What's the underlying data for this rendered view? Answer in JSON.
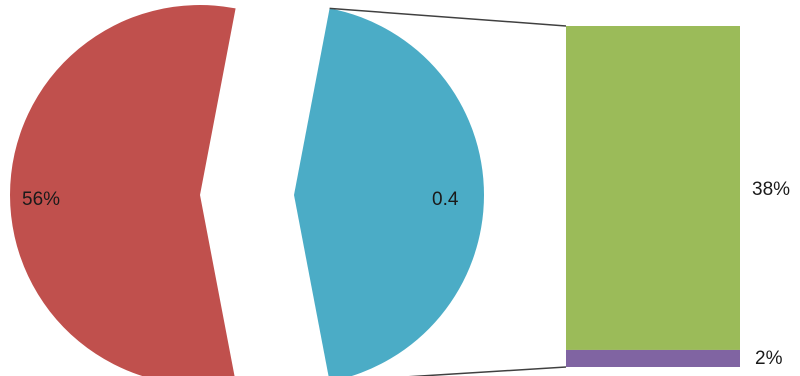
{
  "chart_data": {
    "type": "pie",
    "subtype": "bar-of-pie",
    "slices": [
      {
        "label": "56%",
        "value": 56,
        "color": "#c0504d"
      },
      {
        "label": "0.4",
        "value": 40,
        "color": "#4bacc6",
        "exploded": true
      }
    ],
    "secondary_bar": [
      {
        "label": "38%",
        "value": 38,
        "color": "#9bbb59"
      },
      {
        "label": "2%",
        "value": 2,
        "color": "#8064a2"
      }
    ],
    "connector_color": "#404040"
  }
}
